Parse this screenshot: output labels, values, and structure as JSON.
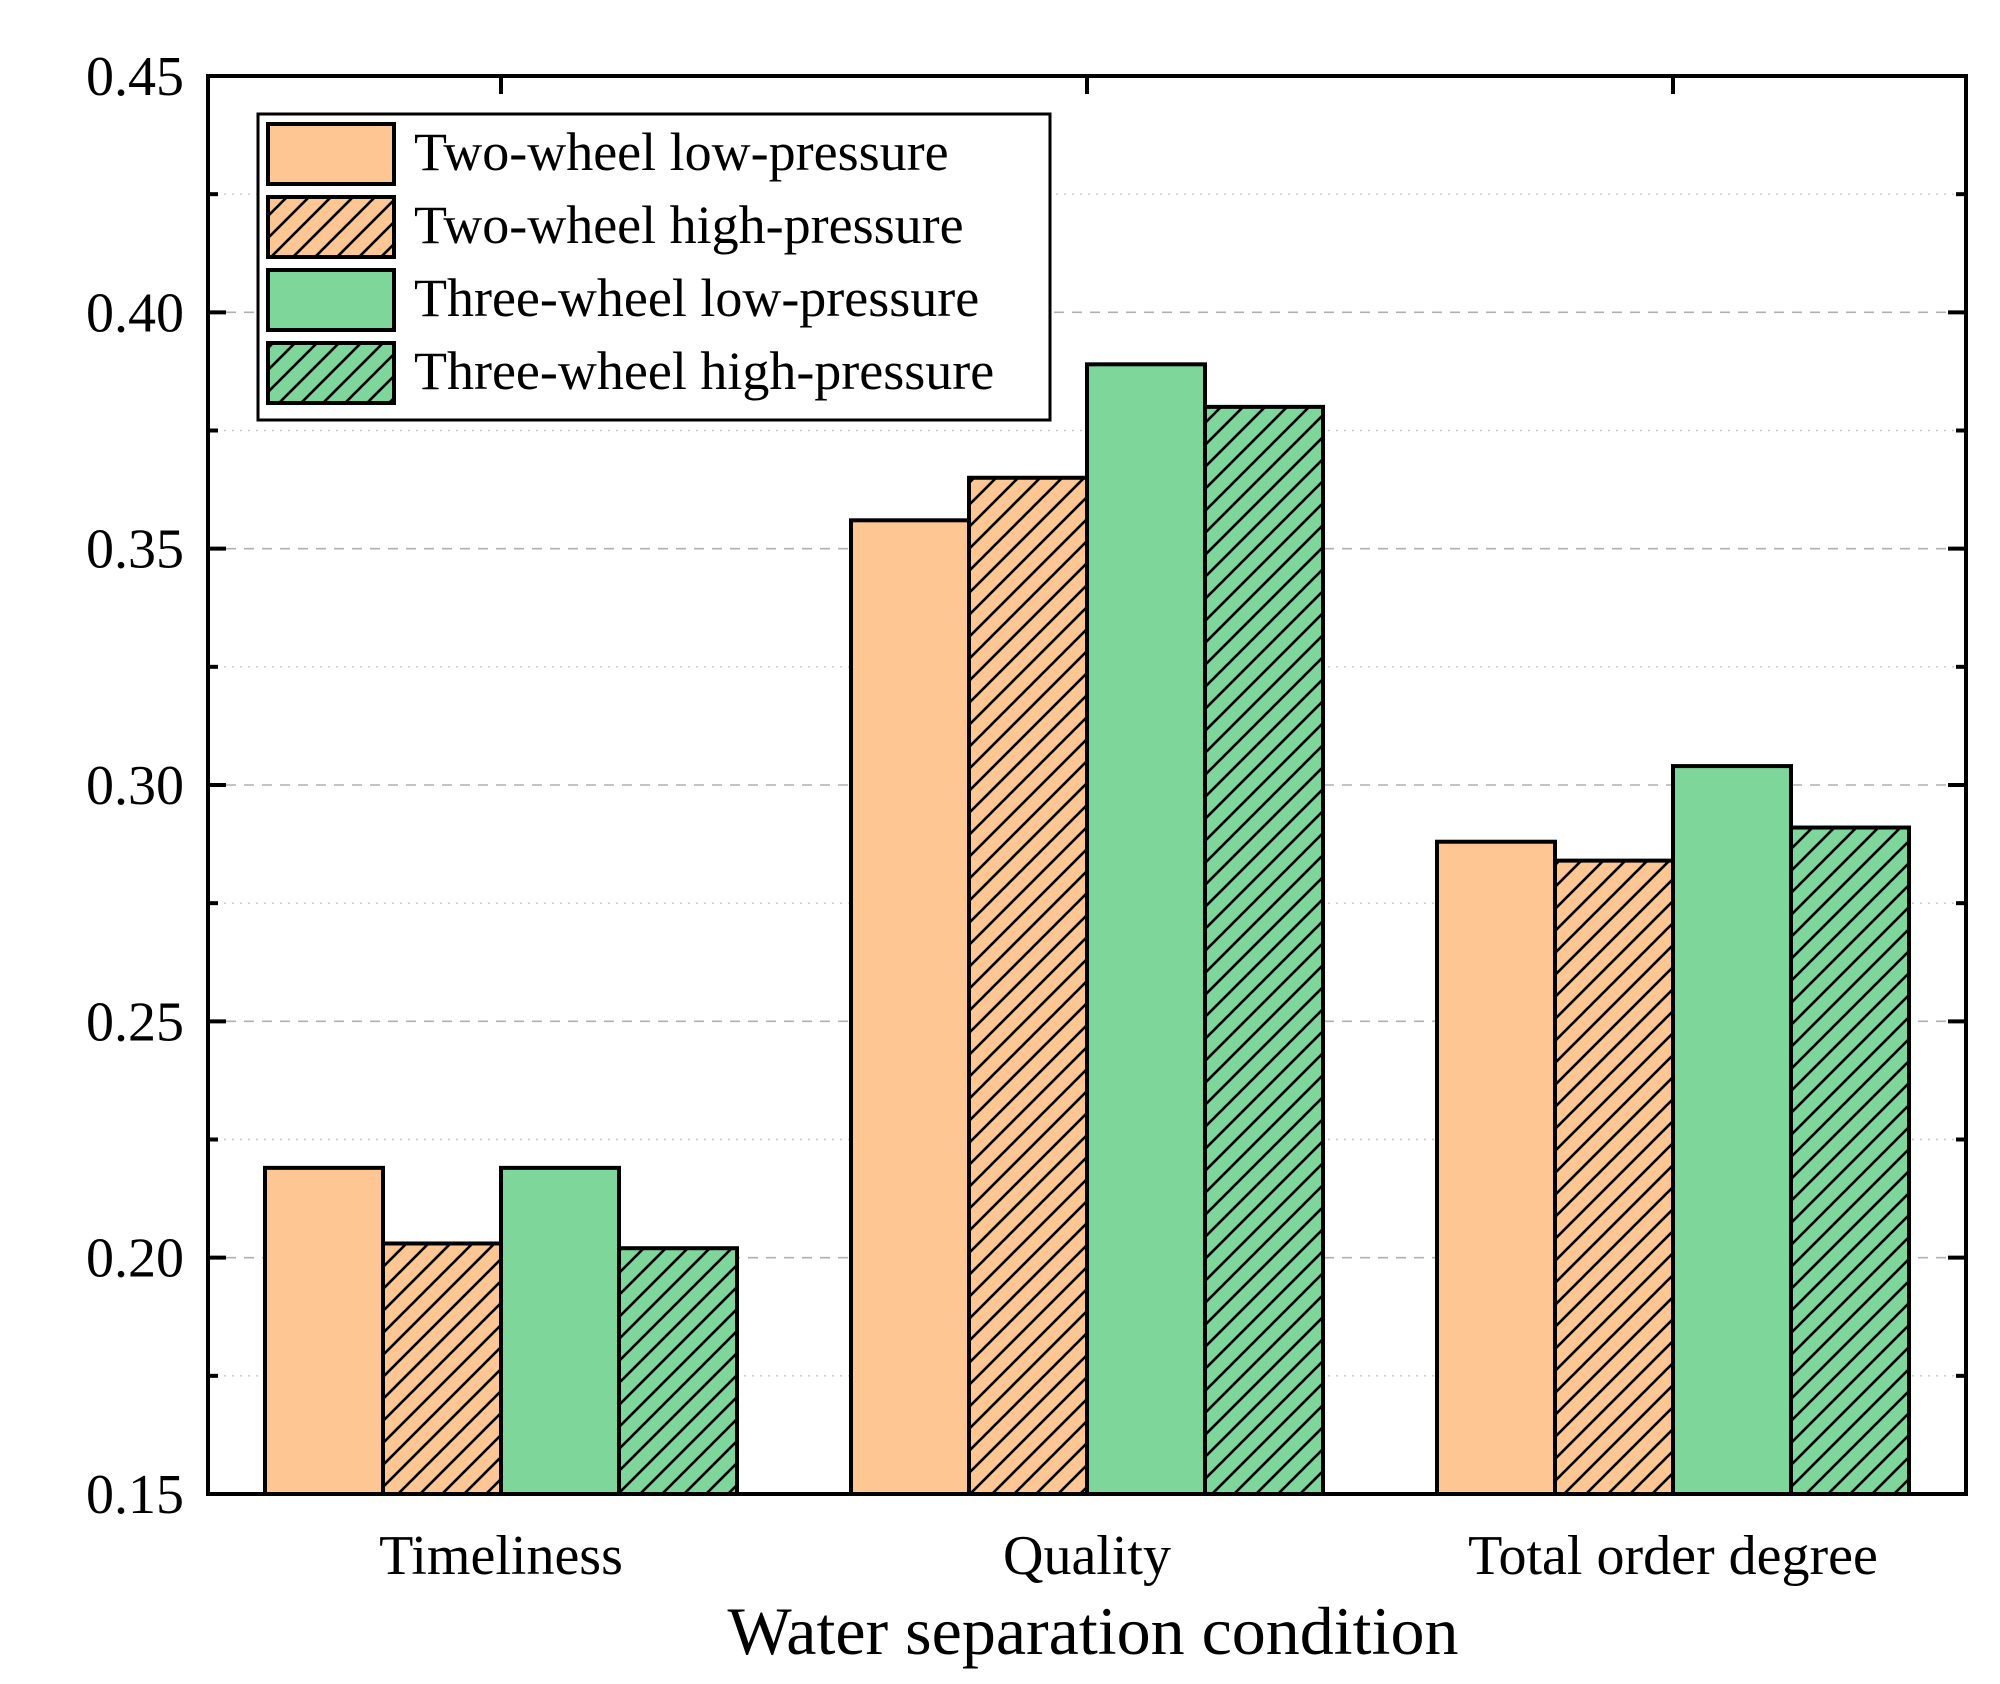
{
  "chart_data": {
    "type": "bar",
    "title": "",
    "xlabel": "Water separation condition",
    "ylabel": "",
    "categories": [
      "Timeliness",
      "Quality",
      "Total order degree"
    ],
    "ylim": [
      0.15,
      0.45
    ],
    "yticks": [
      "0.15",
      "0.20",
      "0.25",
      "0.30",
      "0.35",
      "0.40",
      "0.45"
    ],
    "grid": true,
    "legend_position": "top-left",
    "series": [
      {
        "name": "Two-wheel low-pressure",
        "values": [
          0.219,
          0.356,
          0.288
        ],
        "color": "#FDC692",
        "hatched": false
      },
      {
        "name": "Two-wheel high-pressure",
        "values": [
          0.203,
          0.365,
          0.284
        ],
        "color": "#FDC692",
        "hatched": true
      },
      {
        "name": "Three-wheel low-pressure",
        "values": [
          0.219,
          0.389,
          0.304
        ],
        "color": "#7FD69A",
        "hatched": false
      },
      {
        "name": "Three-wheel high-pressure",
        "values": [
          0.202,
          0.38,
          0.291
        ],
        "color": "#7FD69A",
        "hatched": true
      }
    ]
  }
}
